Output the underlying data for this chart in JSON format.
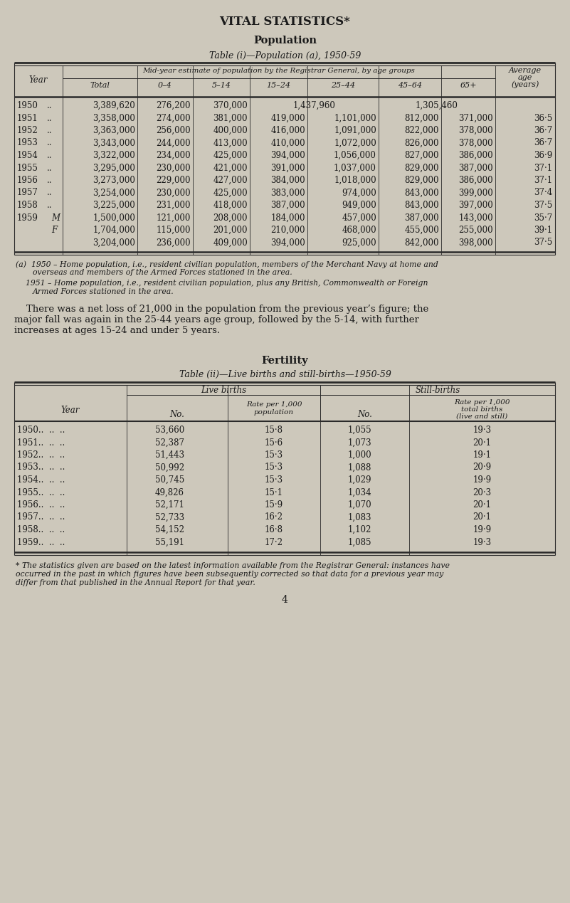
{
  "bg_color": "#cdc8bb",
  "text_color": "#1a1a1a",
  "page_title": "VITAL STATISTICS*",
  "section1_title": "Population",
  "table1_title": "Table (i)—Population (a), 1950-59",
  "table1_header_main": "Mid-year estimate of population by the Registrar General, by age groups",
  "table1_avg_col": "Average age (years)",
  "table1_rows": [
    {
      "year": "1950",
      "suffix": "..",
      "total": "3,389,620",
      "c04": "276,200",
      "c514": "370,000",
      "c1524": "1,437,960",
      "c2544": "",
      "c4564": "1,305,460",
      "c65": "",
      "avg": ""
    },
    {
      "year": "1951",
      "suffix": "..",
      "total": "3,358,000",
      "c04": "274,000",
      "c514": "381,000",
      "c1524": "419,000",
      "c2544": "1,101,000",
      "c4564": "812,000",
      "c65": "371,000",
      "avg": "36·5"
    },
    {
      "year": "1952",
      "suffix": "..",
      "total": "3,363,000",
      "c04": "256,000",
      "c514": "400,000",
      "c1524": "416,000",
      "c2544": "1,091,000",
      "c4564": "822,000",
      "c65": "378,000",
      "avg": "36·7"
    },
    {
      "year": "1953",
      "suffix": "..",
      "total": "3,343,000",
      "c04": "244,000",
      "c514": "413,000",
      "c1524": "410,000",
      "c2544": "1,072,000",
      "c4564": "826,000",
      "c65": "378,000",
      "avg": "36·7"
    },
    {
      "year": "1954",
      "suffix": "..",
      "total": "3,322,000",
      "c04": "234,000",
      "c514": "425,000",
      "c1524": "394,000",
      "c2544": "1,056,000",
      "c4564": "827,000",
      "c65": "386,000",
      "avg": "36·9"
    },
    {
      "year": "1955",
      "suffix": "..",
      "total": "3,295,000",
      "c04": "230,000",
      "c514": "421,000",
      "c1524": "391,000",
      "c2544": "1,037,000",
      "c4564": "829,000",
      "c65": "387,000",
      "avg": "37·1"
    },
    {
      "year": "1956",
      "suffix": "..",
      "total": "3,273,000",
      "c04": "229,000",
      "c514": "427,000",
      "c1524": "384,000",
      "c2544": "1,018,000",
      "c4564": "829,000",
      "c65": "386,000",
      "avg": "37·1"
    },
    {
      "year": "1957",
      "suffix": "..",
      "total": "3,254,000",
      "c04": "230,000",
      "c514": "425,000",
      "c1524": "383,000",
      "c2544": "974,000",
      "c4564": "843,000",
      "c65": "399,000",
      "avg": "37·4"
    },
    {
      "year": "1958",
      "suffix": "..",
      "total": "3,225,000",
      "c04": "231,000",
      "c514": "418,000",
      "c1524": "387,000",
      "c2544": "949,000",
      "c4564": "843,000",
      "c65": "397,000",
      "avg": "37·5"
    },
    {
      "year": "1959",
      "suffix": "M",
      "total": "1,500,000",
      "c04": "121,000",
      "c514": "208,000",
      "c1524": "184,000",
      "c2544": "457,000",
      "c4564": "387,000",
      "c65": "143,000",
      "avg": "35·7"
    },
    {
      "year": "",
      "suffix": "F",
      "total": "1,704,000",
      "c04": "115,000",
      "c514": "201,000",
      "c1524": "210,000",
      "c2544": "468,000",
      "c4564": "455,000",
      "c65": "255,000",
      "avg": "39·1"
    },
    {
      "year": "",
      "suffix": "",
      "total": "3,204,000",
      "c04": "236,000",
      "c514": "409,000",
      "c1524": "394,000",
      "c2544": "925,000",
      "c4564": "842,000",
      "c65": "398,000",
      "avg": "37·5"
    }
  ],
  "footnote_a1": "(a)  1950 – Home population, i.e., resident civilian population, members of the Merchant Navy at home and",
  "footnote_a1b": "overseas and members of the Armed Forces stationed in the area.",
  "footnote_a2": "1951 – Home population, i.e., resident civilian population, plus any British, Commonwealth or Foreign",
  "footnote_a2b": "Armed Forces stationed in the area.",
  "para_line1": "    There was a net loss of 21,000 in the population from the previous year’s figure; the",
  "para_line2": "major fall was again in the 25-44 years age group, followed by the 5-14, with further",
  "para_line3": "increases at ages 15-24 and under 5 years.",
  "section2_title": "Fertility",
  "table2_title": "Table (ii)—Live births and still-births—1950-59",
  "table2_rows": [
    {
      "year": "1950..",
      "live_no": "53,660",
      "live_rate": "15·8",
      "still_no": "1,055",
      "still_rate": "19·3"
    },
    {
      "year": "1951..",
      "live_no": "52,387",
      "live_rate": "15·6",
      "still_no": "1,073",
      "still_rate": "20·1"
    },
    {
      "year": "1952..",
      "live_no": "51,443",
      "live_rate": "15·3",
      "still_no": "1,000",
      "still_rate": "19·1"
    },
    {
      "year": "1953..",
      "live_no": "50,992",
      "live_rate": "15·3",
      "still_no": "1,088",
      "still_rate": "20·9"
    },
    {
      "year": "1954..",
      "live_no": "50,745",
      "live_rate": "15·3",
      "still_no": "1,029",
      "still_rate": "19·9"
    },
    {
      "year": "1955..",
      "live_no": "49,826",
      "live_rate": "15·1",
      "still_no": "1,034",
      "still_rate": "20·3"
    },
    {
      "year": "1956..",
      "live_no": "52,171",
      "live_rate": "15·9",
      "still_no": "1,070",
      "still_rate": "20·1"
    },
    {
      "year": "1957..",
      "live_no": "52,733",
      "live_rate": "16·2",
      "still_no": "1,083",
      "still_rate": "20·1"
    },
    {
      "year": "1958..",
      "live_no": "54,152",
      "live_rate": "16·8",
      "still_no": "1,102",
      "still_rate": "19·9"
    },
    {
      "year": "1959..",
      "live_no": "55,191",
      "live_rate": "17·2",
      "still_no": "1,085",
      "still_rate": "19·3"
    }
  ],
  "footnote_star1": "* The statistics given are based on the latest information available from the Registrar General: instances have",
  "footnote_star2": "occurred in the past in which figures have been subsequently corrected so that data for a previous year may",
  "footnote_star3": "differ from that published in the Annual Report for that year.",
  "page_number": "4"
}
